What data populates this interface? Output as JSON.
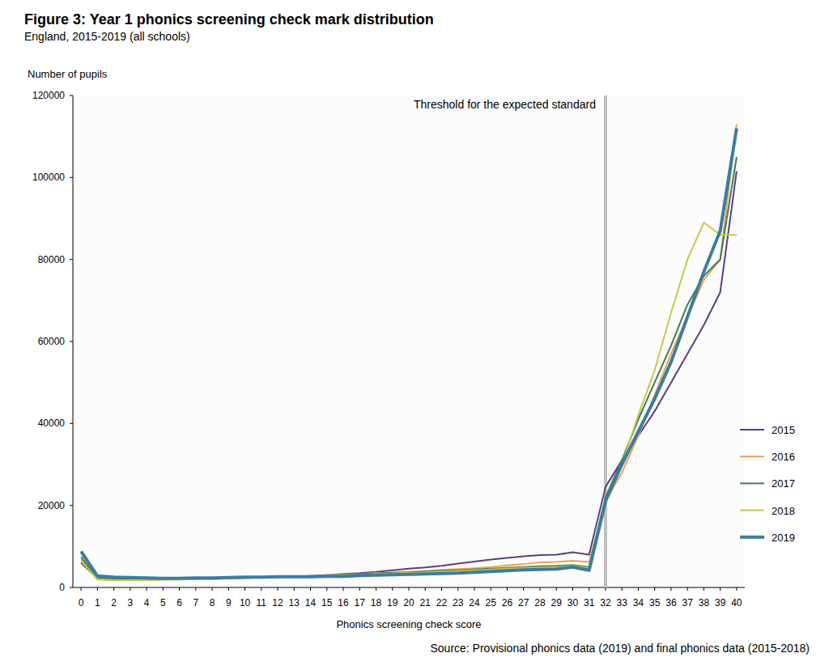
{
  "chart_data": {
    "type": "line",
    "title": "Figure 3: Year 1 phonics screening check mark distribution",
    "subtitle": "England, 2015-2019 (all schools)",
    "y_label": "Number of pupils",
    "x_label": "Phonics screening check score",
    "source": "Source: Provisional phonics data (2019) and final phonics data (2015-2018)",
    "annotations": [
      {
        "x": 32,
        "label": "Threshold for the expected standard"
      }
    ],
    "x": [
      0,
      1,
      2,
      3,
      4,
      5,
      6,
      7,
      8,
      9,
      10,
      11,
      12,
      13,
      14,
      15,
      16,
      17,
      18,
      19,
      20,
      21,
      22,
      23,
      24,
      25,
      26,
      27,
      28,
      29,
      30,
      31,
      32,
      33,
      34,
      35,
      36,
      37,
      38,
      39,
      40
    ],
    "xlim": [
      -0.5,
      40.5
    ],
    "xticks": [
      0,
      1,
      2,
      3,
      4,
      5,
      6,
      7,
      8,
      9,
      10,
      11,
      12,
      13,
      14,
      15,
      16,
      17,
      18,
      19,
      20,
      21,
      22,
      23,
      24,
      25,
      26,
      27,
      28,
      29,
      30,
      31,
      32,
      33,
      34,
      35,
      36,
      37,
      38,
      39,
      40
    ],
    "ylim": [
      0,
      120000
    ],
    "yticks": [
      0,
      20000,
      40000,
      60000,
      80000,
      100000,
      120000
    ],
    "grid": false,
    "legend": "right",
    "series": [
      {
        "name": "2015",
        "color": "#5b3f7a",
        "values": [
          6000,
          2200,
          2000,
          2000,
          2000,
          2000,
          2000,
          2100,
          2100,
          2200,
          2300,
          2400,
          2500,
          2600,
          2700,
          3000,
          3300,
          3500,
          3800,
          4200,
          4600,
          4900,
          5300,
          5800,
          6300,
          6800,
          7200,
          7600,
          7900,
          8000,
          8600,
          8000,
          24500,
          31000,
          37000,
          43000,
          50000,
          57000,
          64000,
          72000,
          101500
        ]
      },
      {
        "name": "2016",
        "color": "#f0a055",
        "values": [
          7000,
          1900,
          1800,
          1800,
          1800,
          1900,
          1900,
          2000,
          2000,
          2200,
          2300,
          2400,
          2600,
          2700,
          2800,
          3000,
          3200,
          3300,
          3500,
          3600,
          3800,
          4000,
          4300,
          4500,
          4700,
          5000,
          5400,
          5700,
          6100,
          6200,
          6500,
          6200,
          21000,
          28000,
          37000,
          47000,
          57000,
          66000,
          75000,
          80000,
          113000
        ]
      },
      {
        "name": "2017",
        "color": "#3f7d4e",
        "values": [
          7500,
          2200,
          2000,
          2000,
          2000,
          2000,
          2000,
          2100,
          2200,
          2300,
          2400,
          2500,
          2600,
          2700,
          2800,
          2900,
          3100,
          3300,
          3400,
          3600,
          3700,
          3900,
          4100,
          4200,
          4400,
          4600,
          4800,
          5000,
          5200,
          5300,
          5500,
          5000,
          22000,
          31000,
          41000,
          50000,
          59000,
          69000,
          76000,
          80000,
          105000
        ]
      },
      {
        "name": "2018",
        "color": "#c8c845",
        "values": [
          6500,
          2000,
          1800,
          1800,
          1800,
          1900,
          1900,
          2000,
          2000,
          2200,
          2300,
          2400,
          2500,
          2600,
          2700,
          2800,
          3000,
          3100,
          3300,
          3400,
          3600,
          3700,
          3900,
          4000,
          4200,
          4400,
          4600,
          4800,
          4900,
          5000,
          5300,
          4800,
          21000,
          30000,
          42000,
          53000,
          67000,
          80000,
          89000,
          86000,
          86000
        ]
      },
      {
        "name": "2019",
        "color": "#3d7c9e",
        "values": [
          8800,
          2800,
          2500,
          2400,
          2300,
          2200,
          2200,
          2300,
          2300,
          2400,
          2500,
          2500,
          2600,
          2600,
          2600,
          2700,
          2700,
          2900,
          3000,
          3100,
          3200,
          3300,
          3400,
          3500,
          3700,
          3900,
          4100,
          4300,
          4400,
          4500,
          5000,
          4200,
          21000,
          30000,
          38000,
          46000,
          55000,
          66000,
          77000,
          87000,
          112000
        ]
      }
    ]
  }
}
